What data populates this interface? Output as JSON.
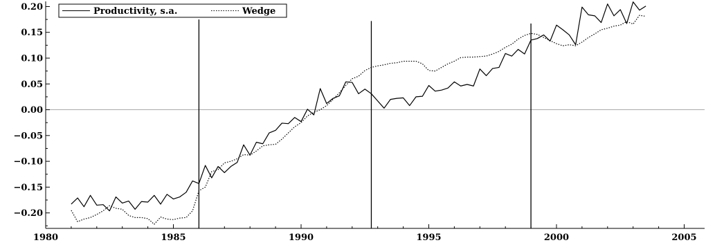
{
  "chart_data": {
    "type": "line",
    "title": "",
    "xlabel": "",
    "ylabel": "",
    "xlim": [
      1980,
      2005.8
    ],
    "ylim": [
      -0.23,
      0.21
    ],
    "xticks": [
      1980,
      1985,
      1990,
      1995,
      2000,
      2005
    ],
    "xtick_labels": [
      "1980",
      "1985",
      "1990",
      "1995",
      "2000",
      "2005"
    ],
    "yticks": [
      0.2,
      0.15,
      0.1,
      0.05,
      0.0,
      -0.05,
      -0.1,
      -0.15,
      -0.2
    ],
    "ytick_labels": [
      "0.20",
      "0.15",
      "0.10",
      "0.05",
      "0.00",
      "−0.05",
      "−0.10",
      "−0.15",
      "−0.20"
    ],
    "grid": false,
    "zero_line": true,
    "legend_position": "top-left",
    "vertical_lines": [
      {
        "x": 1986.0,
        "ymax": 0.175
      },
      {
        "x": 1992.75,
        "ymax": 0.172
      },
      {
        "x": 1999.0,
        "ymax": 0.167
      }
    ],
    "x": [
      1981.0,
      1981.25,
      1981.5,
      1981.75,
      1982.0,
      1982.25,
      1982.5,
      1982.75,
      1983.0,
      1983.25,
      1983.5,
      1983.75,
      1984.0,
      1984.25,
      1984.5,
      1984.75,
      1985.0,
      1985.25,
      1985.5,
      1985.75,
      1986.0,
      1986.25,
      1986.5,
      1986.75,
      1987.0,
      1987.25,
      1987.5,
      1987.75,
      1988.0,
      1988.25,
      1988.5,
      1988.75,
      1989.0,
      1989.25,
      1989.5,
      1989.75,
      1990.0,
      1990.25,
      1990.5,
      1990.75,
      1991.0,
      1991.25,
      1991.5,
      1991.75,
      1992.0,
      1992.25,
      1992.5,
      1992.75,
      1993.0,
      1993.25,
      1993.5,
      1993.75,
      1994.0,
      1994.25,
      1994.5,
      1994.75,
      1995.0,
      1995.25,
      1995.5,
      1995.75,
      1996.0,
      1996.25,
      1996.5,
      1996.75,
      1997.0,
      1997.25,
      1997.5,
      1997.75,
      1998.0,
      1998.25,
      1998.5,
      1998.75,
      1999.0,
      1999.25,
      1999.5,
      1999.75,
      2000.0,
      2000.25,
      2000.5,
      2000.75,
      2001.0,
      2001.25,
      2001.5,
      2001.75,
      2002.0,
      2002.25,
      2002.5,
      2002.75,
      2003.0,
      2003.25,
      2003.5
    ],
    "series": [
      {
        "name": "Productivity, s.a.",
        "style": "solid",
        "values": [
          -0.183,
          -0.171,
          -0.188,
          -0.166,
          -0.185,
          -0.184,
          -0.196,
          -0.169,
          -0.181,
          -0.177,
          -0.193,
          -0.178,
          -0.179,
          -0.166,
          -0.183,
          -0.164,
          -0.173,
          -0.169,
          -0.16,
          -0.138,
          -0.143,
          -0.108,
          -0.132,
          -0.11,
          -0.122,
          -0.11,
          -0.102,
          -0.068,
          -0.088,
          -0.063,
          -0.066,
          -0.045,
          -0.04,
          -0.026,
          -0.027,
          -0.015,
          -0.023,
          0.001,
          -0.01,
          0.041,
          0.012,
          0.022,
          0.027,
          0.054,
          0.053,
          0.031,
          0.04,
          0.031,
          0.017,
          0.003,
          0.02,
          0.022,
          0.023,
          0.008,
          0.025,
          0.026,
          0.047,
          0.036,
          0.038,
          0.042,
          0.054,
          0.046,
          0.049,
          0.046,
          0.079,
          0.066,
          0.08,
          0.082,
          0.109,
          0.104,
          0.117,
          0.108,
          0.135,
          0.138,
          0.145,
          0.133,
          0.164,
          0.155,
          0.145,
          0.126,
          0.199,
          0.184,
          0.182,
          0.169,
          0.205,
          0.182,
          0.194,
          0.167,
          0.209,
          0.193,
          0.201
        ]
      },
      {
        "name": "Wedge",
        "style": "dotted",
        "values": [
          -0.195,
          -0.217,
          -0.212,
          -0.209,
          -0.203,
          -0.196,
          -0.186,
          -0.191,
          -0.193,
          -0.205,
          -0.209,
          -0.209,
          -0.211,
          -0.222,
          -0.208,
          -0.212,
          -0.213,
          -0.21,
          -0.209,
          -0.196,
          -0.157,
          -0.15,
          -0.12,
          -0.116,
          -0.103,
          -0.1,
          -0.095,
          -0.087,
          -0.088,
          -0.08,
          -0.07,
          -0.068,
          -0.067,
          -0.057,
          -0.045,
          -0.033,
          -0.025,
          -0.012,
          -0.005,
          0.0,
          0.008,
          0.02,
          0.033,
          0.047,
          0.06,
          0.065,
          0.076,
          0.082,
          0.085,
          0.087,
          0.09,
          0.091,
          0.094,
          0.094,
          0.094,
          0.089,
          0.076,
          0.075,
          0.082,
          0.089,
          0.094,
          0.101,
          0.102,
          0.102,
          0.103,
          0.104,
          0.108,
          0.113,
          0.121,
          0.127,
          0.137,
          0.144,
          0.148,
          0.146,
          0.14,
          0.134,
          0.128,
          0.124,
          0.126,
          0.124,
          0.131,
          0.14,
          0.147,
          0.155,
          0.158,
          0.162,
          0.164,
          0.171,
          0.166,
          0.183,
          0.181
        ]
      }
    ]
  }
}
